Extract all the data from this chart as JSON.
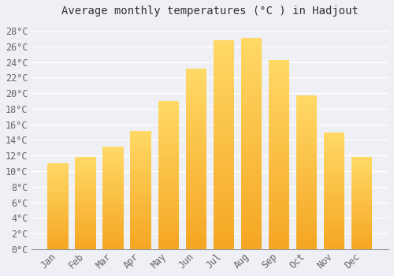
{
  "title": "Average monthly temperatures (°C ) in Hadjout",
  "months": [
    "Jan",
    "Feb",
    "Mar",
    "Apr",
    "May",
    "Jun",
    "Jul",
    "Aug",
    "Sep",
    "Oct",
    "Nov",
    "Dec"
  ],
  "temperatures": [
    11.0,
    11.8,
    13.1,
    15.2,
    19.0,
    23.1,
    26.8,
    27.1,
    24.3,
    19.7,
    15.0,
    11.8
  ],
  "bar_color_bottom": "#F5A623",
  "bar_color_top": "#FFD966",
  "background_color": "#EEF0F5",
  "plot_bg_color": "#EEF0F5",
  "grid_color": "#FFFFFF",
  "ylim": [
    0,
    29
  ],
  "ytick_step": 2,
  "title_fontsize": 10,
  "tick_fontsize": 8.5,
  "font_family": "monospace"
}
